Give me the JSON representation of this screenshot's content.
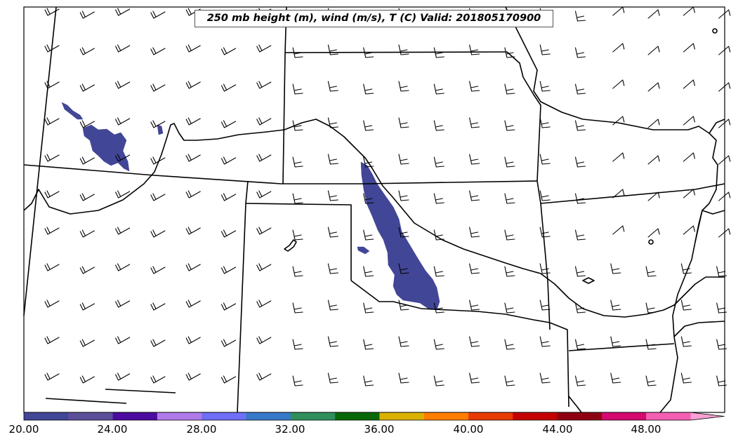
{
  "title": "250 mb height (m), wind (m/s), T (C) Valid: 201805170900",
  "colorbar": {
    "labels": [
      "20.00",
      "24.00",
      "28.00",
      "32.00",
      "36.00",
      "40.00",
      "44.00",
      "48.00"
    ],
    "colors": [
      "#414696",
      "#5b4f9a",
      "#4b0c9f",
      "#b07ae8",
      "#6e6ef6",
      "#3779c9",
      "#2e8f5c",
      "#086807",
      "#dbb100",
      "#ff7d00",
      "#e73b00",
      "#c40000",
      "#8e0011",
      "#d5086f",
      "#f45fb3",
      "#f9a0d4"
    ]
  },
  "field_color": "#414696"
}
